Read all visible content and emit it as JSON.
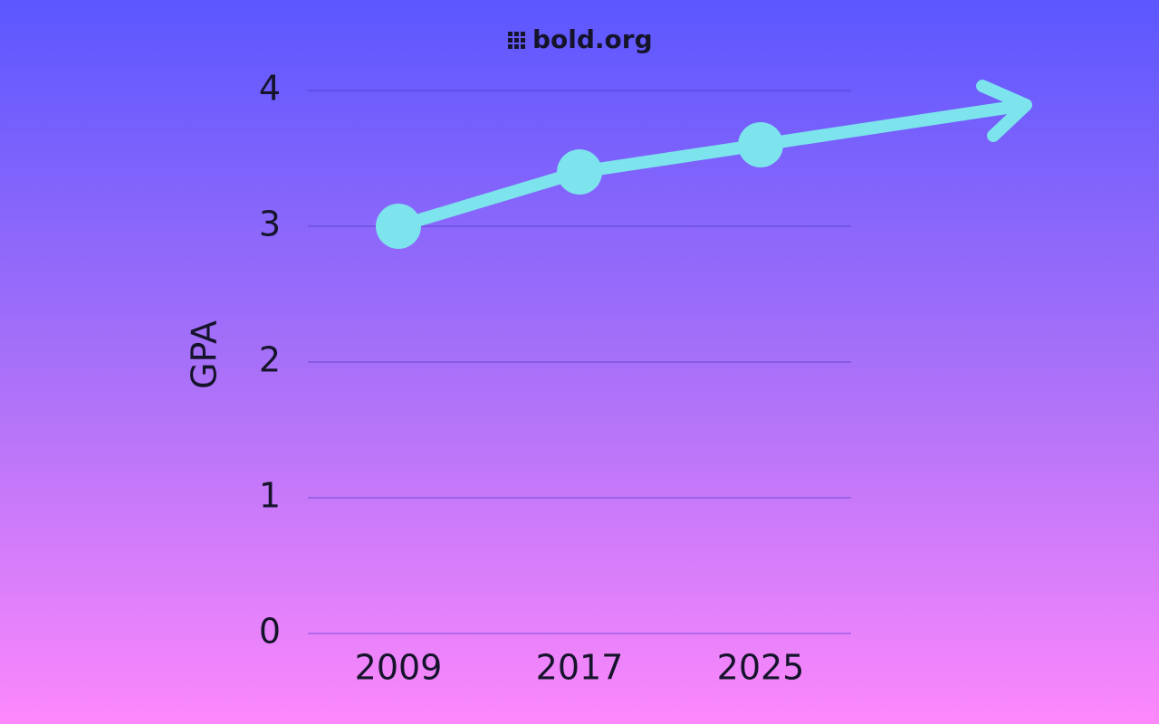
{
  "brand": "bold.org",
  "chart_data": {
    "type": "line",
    "categories": [
      "2009",
      "2017",
      "2025"
    ],
    "series": [
      {
        "name": "GPA",
        "color": "#7de3ec",
        "values": [
          3.0,
          3.4,
          3.6
        ]
      }
    ],
    "y_label": "GPA",
    "ylim": [
      0,
      4
    ],
    "yticks": [
      0,
      1,
      2,
      3,
      4
    ],
    "grid": true
  }
}
